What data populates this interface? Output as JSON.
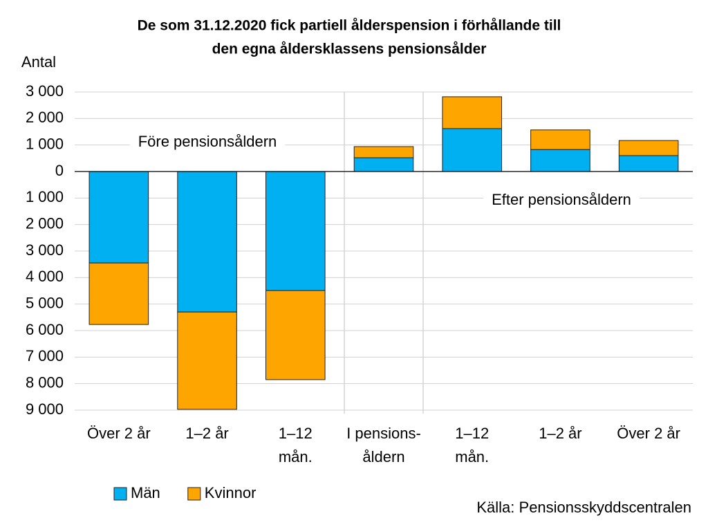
{
  "chart_data": {
    "type": "stacked-bar",
    "title": [
      "De som 31.12.2020 fick partiell ålderspension i förhållande till",
      "den egna åldersklassens pensionsålder"
    ],
    "y_label": "Antal",
    "categories": [
      [
        "Över 2 år"
      ],
      [
        "1–2 år"
      ],
      [
        "1–12",
        "mån."
      ],
      [
        "I pensions-",
        "åldern"
      ],
      [
        "1–12",
        "mån."
      ],
      [
        "1–2 år"
      ],
      [
        "Över 2 år"
      ]
    ],
    "series": [
      {
        "name": "Män",
        "color": "#00b0f0",
        "values": [
          -3450,
          -5300,
          -4490,
          520,
          1620,
          830,
          600
        ]
      },
      {
        "name": "Kvinnor",
        "color": "#ffa500",
        "values": [
          -2320,
          -3670,
          -3360,
          420,
          1200,
          740,
          570
        ]
      }
    ],
    "ylim": [
      -9000,
      3000
    ],
    "yticks": [
      {
        "value": 3000,
        "label": "3 000"
      },
      {
        "value": 2000,
        "label": "2 000"
      },
      {
        "value": 1000,
        "label": "1 000"
      },
      0,
      {
        "value": -1000,
        "label": "1 000"
      },
      {
        "value": -2000,
        "label": "2 000"
      },
      {
        "value": -3000,
        "label": "3 000"
      },
      {
        "value": -4000,
        "label": "4 000"
      },
      {
        "value": -5000,
        "label": "5 000"
      },
      {
        "value": -6000,
        "label": "6 000"
      },
      {
        "value": -7000,
        "label": "7 000"
      },
      {
        "value": -8000,
        "label": "8 000"
      },
      {
        "value": -9000,
        "label": "9 000"
      }
    ],
    "grid": true,
    "annotations": [
      "Före pensionsåldern",
      "Efter pensionsåldern"
    ],
    "source": "Källa: Pensionsskyddscentralen"
  }
}
